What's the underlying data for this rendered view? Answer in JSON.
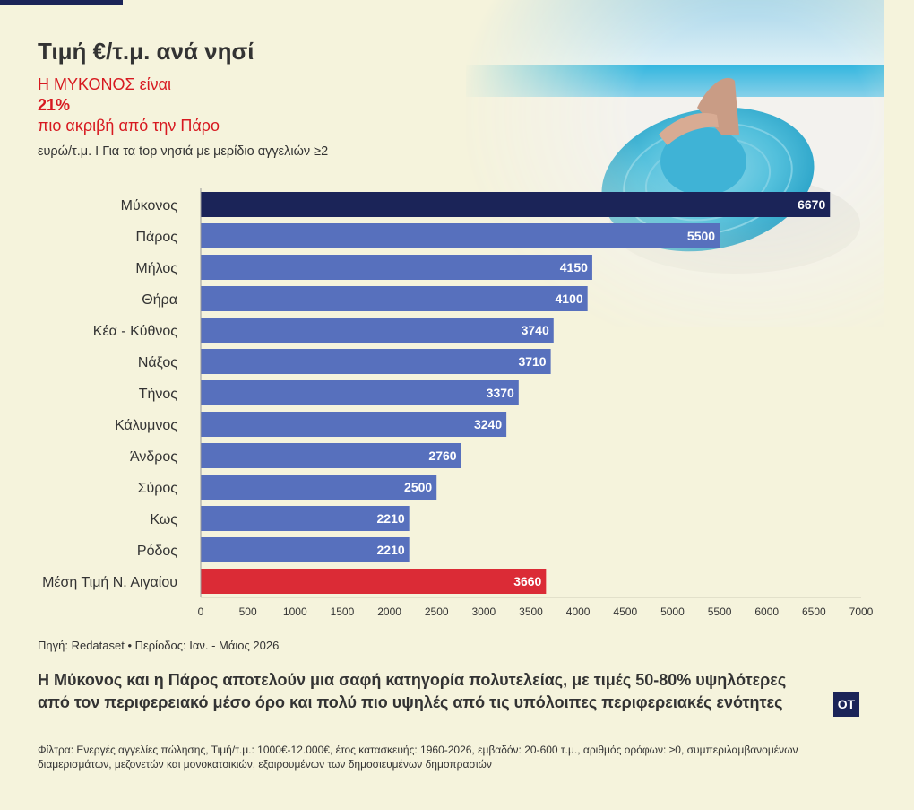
{
  "header": {
    "title": "Τιμή €/τ.μ. ανά νησί",
    "highlight_line1": "Η ΜΥΚΟΝΟΣ είναι",
    "highlight_value": "21%",
    "highlight_line2": "πιο ακριβή από την Πάρο",
    "subtitle": "ευρώ/τ.μ. Ι Για τα top νησιά με μερίδιο αγγελιών ≥2"
  },
  "chart_data": {
    "type": "bar",
    "orientation": "horizontal",
    "title": "Τιμή €/τ.μ. ανά νησί",
    "categories": [
      "Μύκονος",
      "Πάρος",
      "Μήλος",
      "Θήρα",
      "Κέα - Κύθνος",
      "Νάξος",
      "Τήνος",
      "Κάλυμνος",
      "Άνδρος",
      "Σύρος",
      "Κως",
      "Ρόδος",
      "Μέση Τιμή Ν. Αιγαίου"
    ],
    "values": [
      6670,
      5500,
      4150,
      4100,
      3740,
      3710,
      3370,
      3240,
      2760,
      2500,
      2210,
      2210,
      3660
    ],
    "value_labels": [
      "6670",
      "5500",
      "4150",
      "4100",
      "3740",
      "3710",
      "3370",
      "3240",
      "2760",
      "2500",
      "2210",
      "2210",
      "3660"
    ],
    "xlim": [
      0,
      7000
    ],
    "xticks": [
      "0",
      "500",
      "1000",
      "1500",
      "2000",
      "2500",
      "3000",
      "3500",
      "4000",
      "4500",
      "5000",
      "5500",
      "6000",
      "6500",
      "7000"
    ],
    "grid": false,
    "colors": {
      "highlight": "#1b2458",
      "default": "#5770bd",
      "average": "#db2b36"
    }
  },
  "footer": {
    "source": "Πηγή: Redataset • Περίοδος: Ιαν. - Μάιος 2026",
    "takeaway": "Η Μύκονος και η Πάρος αποτελούν μια σαφή κατηγορία πολυτελείας, με τιμές 50-80% υψηλότερες από τον περιφερειακό μέσο όρο και πολύ πιο υψηλές από τις υπόλοιπες περιφερειακές ενότητες",
    "logo_text": "OT",
    "filters": "Φίλτρα: Ενεργές αγγελίες πώλησης, Τιμή/τ.μ.: 1000€-12.000€, έτος κατασκευής: 1960-2026, εμβαδόν: 20-600 τ.μ., αριθμός ορόφων: ≥0, συμπεριλαμβανομένων διαμερισμάτων, μεζονετών και μονοκατοικιών, εξαιρουμένων των δημοσιευμένων δημοπρασιών"
  }
}
